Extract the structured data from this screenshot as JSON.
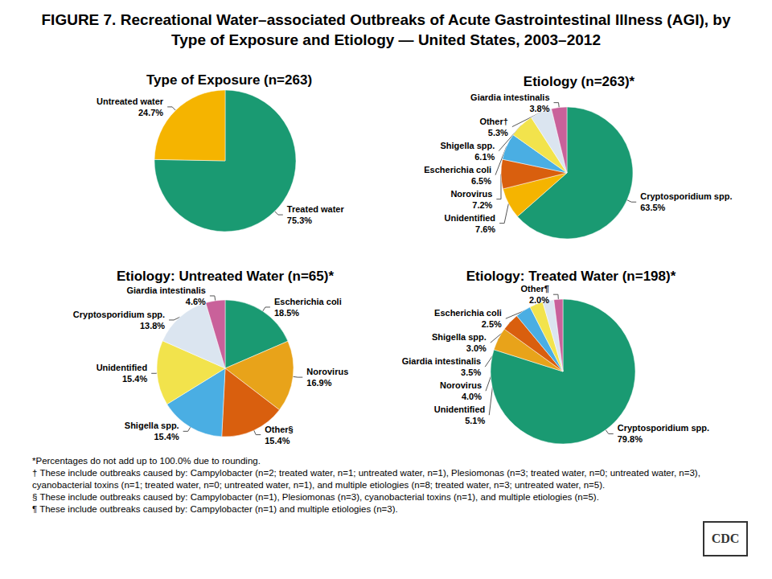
{
  "title": "FIGURE 7. Recreational Water–associated Outbreaks of Acute Gastrointestinal Illness (AGI), by Type of Exposure and Etiology — United States, 2003–2012",
  "chart_data": [
    {
      "type": "pie",
      "title": "Type of Exposure (n=263)",
      "categories": [
        "Treated water",
        "Untreated water"
      ],
      "values": [
        75.3,
        24.7
      ],
      "value_labels": [
        "75.3%",
        "24.7%"
      ],
      "colors": [
        "#1a9a72",
        "#f5b400"
      ],
      "data_labels": true
    },
    {
      "type": "pie",
      "title": "Etiology (n=263)*",
      "categories": [
        "Cryptosporidium spp.",
        "Unidentified",
        "Norovirus",
        "Escherichia coli",
        "Shigella spp.",
        "Other†",
        "Giardia intestinalis"
      ],
      "values": [
        63.5,
        7.6,
        7.2,
        6.5,
        6.1,
        5.3,
        3.8
      ],
      "value_labels": [
        "63.5%",
        "7.6%",
        "7.2%",
        "6.5%",
        "6.1%",
        "5.3%",
        "3.8%"
      ],
      "colors": [
        "#1a9a72",
        "#f5b400",
        "#d95f0e",
        "#4aaee3",
        "#f2e34c",
        "#dbe5f0",
        "#c9619a"
      ],
      "data_labels": true
    },
    {
      "type": "pie",
      "title": "Etiology: Untreated Water (n=65)*",
      "categories": [
        "Escherichia coli",
        "Norovirus",
        "Other§",
        "Shigella spp.",
        "Unidentified",
        "Cryptosporidium spp.",
        "Giardia intestinalis"
      ],
      "values": [
        18.5,
        16.9,
        15.4,
        15.4,
        15.4,
        13.8,
        4.6
      ],
      "value_labels": [
        "18.5%",
        "16.9%",
        "15.4%",
        "15.4%",
        "15.4%",
        "13.8%",
        "4.6%"
      ],
      "colors": [
        "#1a9a72",
        "#e8a31a",
        "#d95f0e",
        "#4aaee3",
        "#f2e34c",
        "#dbe5f0",
        "#c9619a"
      ],
      "data_labels": true
    },
    {
      "type": "pie",
      "title": "Etiology: Treated Water (n=198)*",
      "categories": [
        "Cryptosporidium spp.",
        "Unidentified",
        "Norovirus",
        "Giardia intestinalis",
        "Shigella spp.",
        "Escherichia coli",
        "Other¶"
      ],
      "values": [
        79.8,
        5.1,
        4.0,
        3.5,
        3.0,
        2.5,
        2.0
      ],
      "value_labels": [
        "79.8%",
        "5.1%",
        "4.0%",
        "3.5%",
        "3.0%",
        "2.5%",
        "2.0%"
      ],
      "colors": [
        "#1a9a72",
        "#e8a31a",
        "#d95f0e",
        "#4aaee3",
        "#f2e34c",
        "#dbe5f0",
        "#c9619a"
      ],
      "data_labels": true
    }
  ],
  "footnotes": [
    "*Percentages do not add up to 100.0% due to rounding.",
    "† These include outbreaks caused by: Campylobacter (n=2; treated water, n=1; untreated water, n=1), Plesiomonas (n=3; treated water, n=0; untreated water, n=3), cyanobacterial toxins (n=1; treated water, n=0; untreated water, n=1), and multiple etiologies (n=8; treated water, n=3; untreated water, n=5).",
    "§ These include outbreaks caused by: Campylobacter (n=1), Plesiomonas (n=3), cyanobacterial toxins (n=1), and multiple etiologies (n=5).",
    "¶ These include outbreaks caused by: Campylobacter (n=1) and multiple etiologies (n=3)."
  ],
  "logo": "CDC"
}
